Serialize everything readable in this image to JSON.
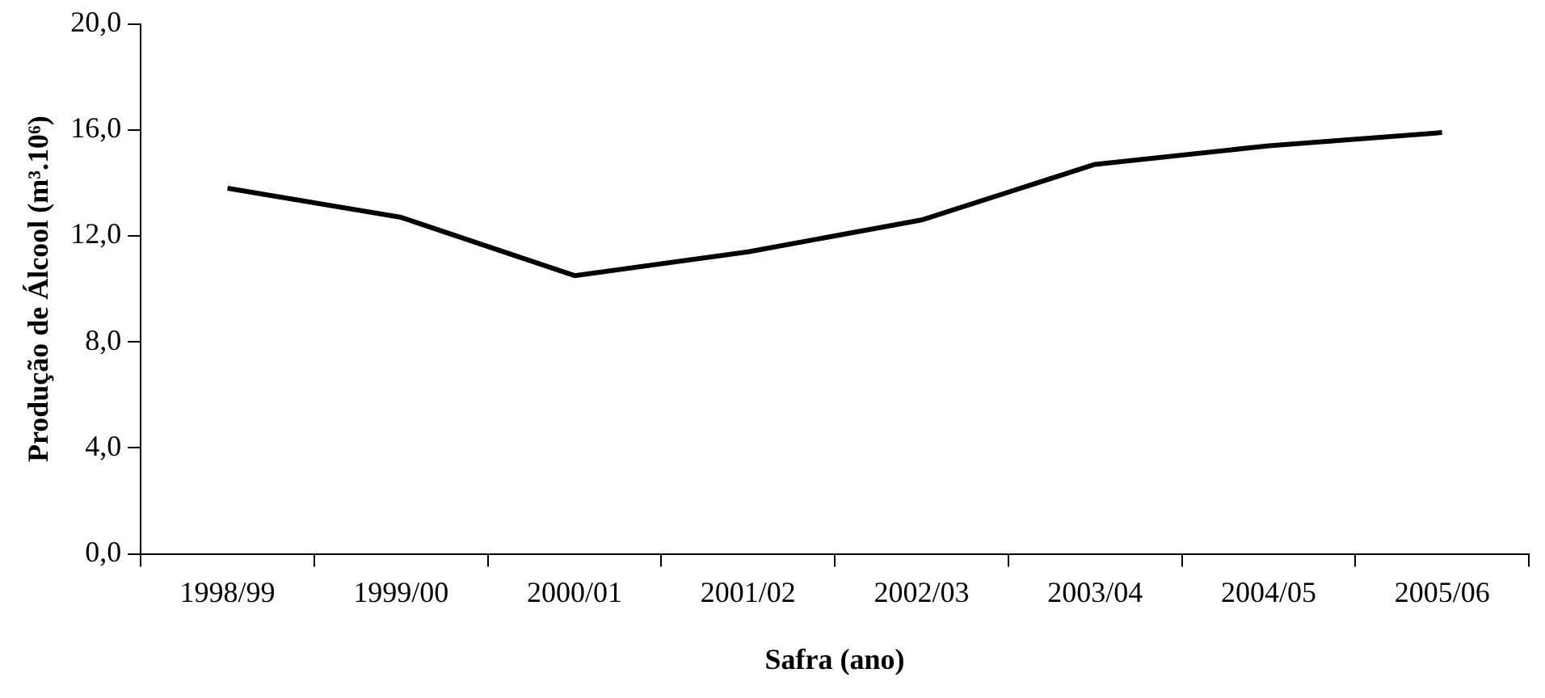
{
  "chart_data": {
    "type": "line",
    "xlabel": "Safra (ano)",
    "ylabel": "Produção de Álcool (m³.10⁶)",
    "categories": [
      "1998/99",
      "1999/00",
      "2000/01",
      "2001/02",
      "2002/03",
      "2003/04",
      "2004/05",
      "2005/06"
    ],
    "series": [
      {
        "color": "#000000",
        "values": [
          13.8,
          12.7,
          10.5,
          11.4,
          12.6,
          14.7,
          15.4,
          15.9
        ]
      }
    ],
    "ylim": [
      0,
      20
    ],
    "yticks": [
      {
        "value": 0,
        "label": "0,0"
      },
      {
        "value": 4,
        "label": "4,0"
      },
      {
        "value": 8,
        "label": "8,0"
      },
      {
        "value": 12,
        "label": "12,0"
      },
      {
        "value": 16,
        "label": "16,0"
      },
      {
        "value": 20,
        "label": "20,0"
      }
    ],
    "grid": false,
    "legend": false,
    "marker": "none",
    "line_style": "solid"
  }
}
